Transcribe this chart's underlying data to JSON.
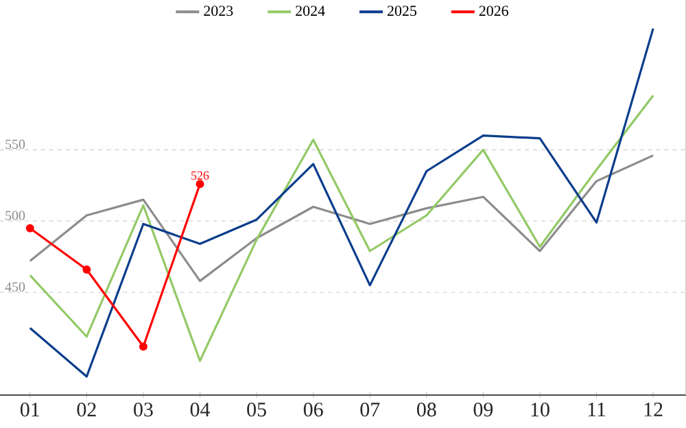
{
  "chart_data": {
    "type": "line",
    "categories": [
      "01",
      "02",
      "03",
      "04",
      "05",
      "06",
      "07",
      "08",
      "09",
      "10",
      "11",
      "12"
    ],
    "series": [
      {
        "name": "2023",
        "color": "#8c8c8c",
        "values": [
          472,
          504,
          515,
          458,
          488,
          510,
          498,
          509,
          517,
          479,
          528,
          546
        ]
      },
      {
        "name": "2024",
        "color": "#92c965",
        "values": [
          462,
          419,
          511,
          402,
          487,
          557,
          479,
          504,
          550,
          482,
          536,
          588
        ]
      },
      {
        "name": "2025",
        "color": "#0a3d8c",
        "values": [
          425,
          391,
          498,
          484,
          501,
          540,
          455,
          535,
          560,
          558,
          499,
          635
        ]
      },
      {
        "name": "2026",
        "color": "#ff0000",
        "marker": "circle",
        "values": [
          495,
          466,
          412,
          526,
          null,
          null,
          null,
          null,
          null,
          null,
          null,
          null
        ],
        "value_labels": [
          null,
          null,
          null,
          "526",
          null,
          null,
          null,
          null,
          null,
          null,
          null,
          null
        ]
      }
    ],
    "ylim": [
      378,
      655
    ],
    "yticks": [
      450,
      500,
      550
    ],
    "grid": "y",
    "legend": "top",
    "marker": "none",
    "line_style": "solid"
  }
}
